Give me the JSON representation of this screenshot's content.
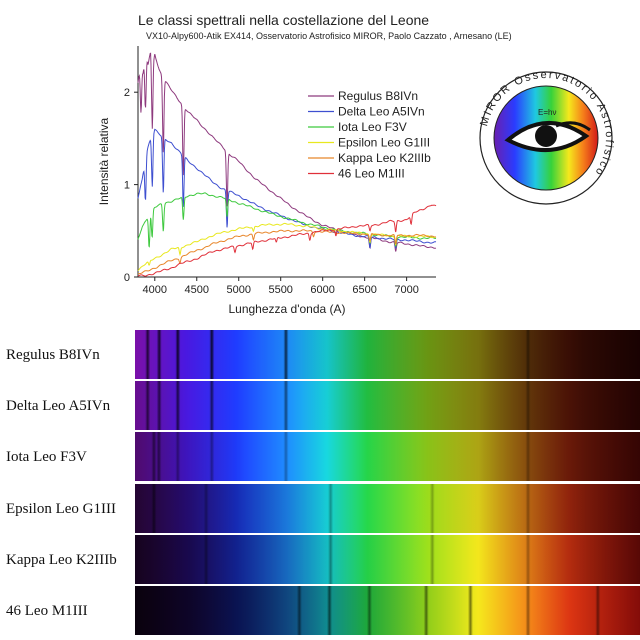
{
  "title": "Le classi spettrali nella costellazione del Leone",
  "subtitle": "VX10-Alpy600-Atik  EX414, Osservatorio Astrofisico MIROR, Paolo Cazzato , Arnesano (LE)",
  "logo": {
    "text": "MIROR   Osservatorio   Astrofisico",
    "formula": "E=hν"
  },
  "chart_data": {
    "type": "line",
    "title": "Le classi spettrali nella costellazione del Leone",
    "subtitle": "VX10-Alpy600-Atik  EX414, Osservatorio Astrofisico MIROR, Paolo Cazzato , Arnesano (LE)",
    "xlabel": "Lunghezza d'onda (A)",
    "ylabel": "Intensità relativa",
    "xlim": [
      3800,
      7350
    ],
    "ylim": [
      0,
      2.5
    ],
    "xticks": [
      4000,
      4500,
      5000,
      5500,
      6000,
      6500,
      7000
    ],
    "yticks": [
      0,
      1,
      2
    ],
    "grid": false,
    "legend_position": "top-right",
    "series": [
      {
        "name": "Regulus B8IVn",
        "color": "#8e3a7e",
        "points": [
          [
            3800,
            2.1
          ],
          [
            3830,
            2.3
          ],
          [
            3860,
            2.2
          ],
          [
            3890,
            2.42
          ],
          [
            3920,
            2.3
          ],
          [
            3950,
            2.45
          ],
          [
            3970,
            2.3
          ],
          [
            4000,
            2.42
          ],
          [
            4050,
            2.25
          ],
          [
            4100,
            2.15
          ],
          [
            4200,
            2.02
          ],
          [
            4300,
            1.9
          ],
          [
            4400,
            1.78
          ],
          [
            4500,
            1.7
          ],
          [
            4600,
            1.6
          ],
          [
            4700,
            1.5
          ],
          [
            4800,
            1.42
          ],
          [
            4900,
            1.32
          ],
          [
            5000,
            1.25
          ],
          [
            5200,
            1.06
          ],
          [
            5400,
            0.92
          ],
          [
            5600,
            0.78
          ],
          [
            5800,
            0.66
          ],
          [
            6000,
            0.56
          ],
          [
            6200,
            0.5
          ],
          [
            6400,
            0.45
          ],
          [
            6600,
            0.42
          ],
          [
            6800,
            0.38
          ],
          [
            7000,
            0.36
          ],
          [
            7200,
            0.33
          ],
          [
            7350,
            0.32
          ]
        ],
        "lines": [
          {
            "x": 3835,
            "depth": 0.5
          },
          {
            "x": 3889,
            "depth": 0.6
          },
          {
            "x": 3970,
            "depth": 0.7
          },
          {
            "x": 4101,
            "depth": 0.8
          },
          {
            "x": 4340,
            "depth": 0.75
          },
          {
            "x": 4861,
            "depth": 0.6
          },
          {
            "x": 6563,
            "depth": 0.12
          },
          {
            "x": 6870,
            "depth": 0.1
          }
        ]
      },
      {
        "name": "Delta Leo A5IVn",
        "color": "#3e4fd0",
        "points": [
          [
            3800,
            0.85
          ],
          [
            3850,
            1.05
          ],
          [
            3900,
            1.35
          ],
          [
            3950,
            1.5
          ],
          [
            4000,
            1.6
          ],
          [
            4100,
            1.5
          ],
          [
            4200,
            1.45
          ],
          [
            4300,
            1.35
          ],
          [
            4400,
            1.25
          ],
          [
            4500,
            1.18
          ],
          [
            4600,
            1.1
          ],
          [
            4700,
            1.02
          ],
          [
            4800,
            0.96
          ],
          [
            5000,
            0.88
          ],
          [
            5200,
            0.78
          ],
          [
            5400,
            0.7
          ],
          [
            5600,
            0.63
          ],
          [
            5800,
            0.56
          ],
          [
            6000,
            0.52
          ],
          [
            6200,
            0.48
          ],
          [
            6400,
            0.45
          ],
          [
            6600,
            0.43
          ],
          [
            6800,
            0.41
          ],
          [
            7000,
            0.4
          ],
          [
            7200,
            0.38
          ],
          [
            7350,
            0.37
          ]
        ],
        "lines": [
          {
            "x": 3889,
            "depth": 0.45
          },
          {
            "x": 3970,
            "depth": 0.55
          },
          {
            "x": 4101,
            "depth": 0.6
          },
          {
            "x": 4340,
            "depth": 0.55
          },
          {
            "x": 4861,
            "depth": 0.4
          },
          {
            "x": 6563,
            "depth": 0.12
          },
          {
            "x": 6870,
            "depth": 0.1
          }
        ]
      },
      {
        "name": "Iota Leo F3V",
        "color": "#3ec93e",
        "points": [
          [
            3800,
            0.4
          ],
          [
            3850,
            0.55
          ],
          [
            3900,
            0.62
          ],
          [
            3950,
            0.7
          ],
          [
            4000,
            0.75
          ],
          [
            4100,
            0.8
          ],
          [
            4200,
            0.82
          ],
          [
            4300,
            0.85
          ],
          [
            4400,
            0.88
          ],
          [
            4500,
            0.9
          ],
          [
            4600,
            0.9
          ],
          [
            4700,
            0.88
          ],
          [
            4800,
            0.86
          ],
          [
            5000,
            0.8
          ],
          [
            5200,
            0.74
          ],
          [
            5400,
            0.68
          ],
          [
            5600,
            0.63
          ],
          [
            5800,
            0.58
          ],
          [
            6000,
            0.54
          ],
          [
            6200,
            0.5
          ],
          [
            6400,
            0.48
          ],
          [
            6600,
            0.46
          ],
          [
            6800,
            0.44
          ],
          [
            7000,
            0.43
          ],
          [
            7200,
            0.42
          ],
          [
            7350,
            0.42
          ]
        ],
        "lines": [
          {
            "x": 3933,
            "depth": 0.35
          },
          {
            "x": 3968,
            "depth": 0.3
          },
          {
            "x": 4101,
            "depth": 0.3
          },
          {
            "x": 4340,
            "depth": 0.25
          },
          {
            "x": 4861,
            "depth": 0.2
          },
          {
            "x": 6563,
            "depth": 0.1
          },
          {
            "x": 6870,
            "depth": 0.1
          }
        ]
      },
      {
        "name": "Epsilon Leo G1III",
        "color": "#e8e81e",
        "points": [
          [
            3800,
            0.08
          ],
          [
            3900,
            0.15
          ],
          [
            4000,
            0.2
          ],
          [
            4100,
            0.25
          ],
          [
            4200,
            0.3
          ],
          [
            4300,
            0.32
          ],
          [
            4400,
            0.35
          ],
          [
            4500,
            0.38
          ],
          [
            4600,
            0.42
          ],
          [
            4700,
            0.45
          ],
          [
            4800,
            0.48
          ],
          [
            5000,
            0.52
          ],
          [
            5200,
            0.55
          ],
          [
            5400,
            0.57
          ],
          [
            5600,
            0.57
          ],
          [
            5800,
            0.55
          ],
          [
            6000,
            0.52
          ],
          [
            6200,
            0.5
          ],
          [
            6400,
            0.48
          ],
          [
            6600,
            0.46
          ],
          [
            6800,
            0.45
          ],
          [
            7000,
            0.44
          ],
          [
            7200,
            0.44
          ],
          [
            7350,
            0.43
          ]
        ],
        "lines": [
          {
            "x": 3933,
            "depth": 0.05
          },
          {
            "x": 4300,
            "depth": 0.08
          },
          {
            "x": 5175,
            "depth": 0.05
          },
          {
            "x": 6563,
            "depth": 0.08
          },
          {
            "x": 6870,
            "depth": 0.1
          }
        ]
      },
      {
        "name": "Kappa Leo K2IIIb",
        "color": "#e8862a",
        "points": [
          [
            3800,
            0.03
          ],
          [
            3900,
            0.06
          ],
          [
            4000,
            0.1
          ],
          [
            4100,
            0.14
          ],
          [
            4200,
            0.18
          ],
          [
            4300,
            0.21
          ],
          [
            4400,
            0.25
          ],
          [
            4500,
            0.29
          ],
          [
            4600,
            0.32
          ],
          [
            4700,
            0.36
          ],
          [
            4800,
            0.39
          ],
          [
            5000,
            0.44
          ],
          [
            5200,
            0.47
          ],
          [
            5400,
            0.49
          ],
          [
            5600,
            0.5
          ],
          [
            5800,
            0.5
          ],
          [
            6000,
            0.49
          ],
          [
            6200,
            0.48
          ],
          [
            6400,
            0.47
          ],
          [
            6600,
            0.46
          ],
          [
            6800,
            0.45
          ],
          [
            7000,
            0.45
          ],
          [
            7200,
            0.45
          ],
          [
            7350,
            0.44
          ]
        ],
        "lines": [
          {
            "x": 4300,
            "depth": 0.05
          },
          {
            "x": 5175,
            "depth": 0.06
          },
          {
            "x": 5890,
            "depth": 0.05
          },
          {
            "x": 6563,
            "depth": 0.08
          },
          {
            "x": 6870,
            "depth": 0.1
          }
        ]
      },
      {
        "name": "46 Leo M1III",
        "color": "#e0303a",
        "points": [
          [
            3800,
            0.01
          ],
          [
            3900,
            0.02
          ],
          [
            4000,
            0.04
          ],
          [
            4100,
            0.07
          ],
          [
            4200,
            0.1
          ],
          [
            4300,
            0.14
          ],
          [
            4400,
            0.17
          ],
          [
            4500,
            0.2
          ],
          [
            4600,
            0.24
          ],
          [
            4700,
            0.28
          ],
          [
            4800,
            0.3
          ],
          [
            5000,
            0.34
          ],
          [
            5200,
            0.38
          ],
          [
            5400,
            0.41
          ],
          [
            5600,
            0.44
          ],
          [
            5800,
            0.47
          ],
          [
            6000,
            0.5
          ],
          [
            6200,
            0.52
          ],
          [
            6400,
            0.55
          ],
          [
            6600,
            0.56
          ],
          [
            6800,
            0.6
          ],
          [
            7000,
            0.62
          ],
          [
            7100,
            0.7
          ],
          [
            7200,
            0.74
          ],
          [
            7300,
            0.78
          ],
          [
            7350,
            0.76
          ]
        ],
        "lines": [
          {
            "x": 4955,
            "depth": 0.06
          },
          {
            "x": 5167,
            "depth": 0.08
          },
          {
            "x": 5448,
            "depth": 0.05
          },
          {
            "x": 5847,
            "depth": 0.07
          },
          {
            "x": 6158,
            "depth": 0.07
          },
          {
            "x": 6563,
            "depth": 0.06
          },
          {
            "x": 6870,
            "depth": 0.12
          },
          {
            "x": 7054,
            "depth": 0.1
          }
        ]
      }
    ]
  },
  "strips": [
    {
      "label": "Regulus B8IVn",
      "brightness": [
        1.0,
        1.0,
        1.0,
        0.95,
        0.85,
        0.7,
        0.5,
        0.32,
        0.2,
        0.14
      ],
      "absorption": [
        [
          3889,
          0.7
        ],
        [
          3970,
          0.75
        ],
        [
          4101,
          0.8
        ],
        [
          4340,
          0.8
        ],
        [
          4861,
          0.7
        ],
        [
          6563,
          0.4
        ]
      ]
    },
    {
      "label": "Delta Leo A5IVn",
      "brightness": [
        0.85,
        1.0,
        1.0,
        1.0,
        0.9,
        0.75,
        0.55,
        0.4,
        0.28,
        0.2
      ],
      "absorption": [
        [
          3889,
          0.6
        ],
        [
          3970,
          0.6
        ],
        [
          4101,
          0.65
        ],
        [
          4340,
          0.6
        ],
        [
          4861,
          0.5
        ],
        [
          6563,
          0.35
        ]
      ]
    },
    {
      "label": "Iota Leo F3V",
      "brightness": [
        0.65,
        0.85,
        1.0,
        1.0,
        1.0,
        0.9,
        0.72,
        0.55,
        0.4,
        0.3
      ],
      "absorption": [
        [
          3933,
          0.5
        ],
        [
          3968,
          0.5
        ],
        [
          4101,
          0.35
        ],
        [
          4340,
          0.35
        ],
        [
          4861,
          0.3
        ],
        [
          6563,
          0.3
        ]
      ]
    },
    {
      "label": "Epsilon Leo G1III",
      "brightness": [
        0.3,
        0.5,
        0.75,
        0.9,
        1.0,
        1.0,
        0.9,
        0.75,
        0.55,
        0.4
      ],
      "absorption": [
        [
          3933,
          0.5
        ],
        [
          4300,
          0.3
        ],
        [
          5175,
          0.3
        ],
        [
          5890,
          0.25
        ],
        [
          6563,
          0.3
        ]
      ]
    },
    {
      "label": "Kappa Leo K2IIIb",
      "brightness": [
        0.18,
        0.35,
        0.6,
        0.8,
        0.95,
        1.0,
        1.0,
        0.9,
        0.7,
        0.5
      ],
      "absorption": [
        [
          4300,
          0.35
        ],
        [
          5175,
          0.35
        ],
        [
          5890,
          0.3
        ],
        [
          6563,
          0.3
        ]
      ]
    },
    {
      "label": "46 Leo M1III",
      "brightness": [
        0.08,
        0.18,
        0.35,
        0.55,
        0.75,
        0.9,
        1.0,
        1.0,
        0.9,
        0.75
      ],
      "absorption": [
        [
          4955,
          0.5
        ],
        [
          5167,
          0.55
        ],
        [
          5448,
          0.45
        ],
        [
          5847,
          0.5
        ],
        [
          6158,
          0.5
        ],
        [
          6563,
          0.4
        ],
        [
          7054,
          0.45
        ]
      ]
    }
  ]
}
